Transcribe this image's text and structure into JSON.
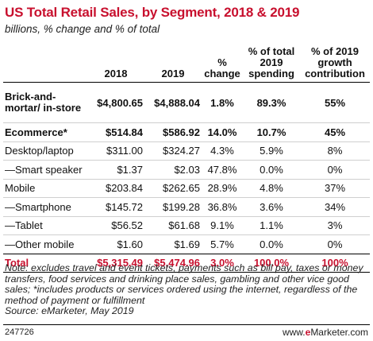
{
  "title": "US Total Retail Sales, by Segment, 2018 & 2019",
  "subtitle": "billions, % change and % of total",
  "columns": {
    "segment": "",
    "y2018": "2018",
    "y2019": "2019",
    "pct_change": [
      "%",
      "change"
    ],
    "pct_total": [
      "% of total",
      "2019",
      "spending"
    ],
    "pct_growth": [
      "% of 2019",
      "growth",
      "contribution"
    ]
  },
  "rows": [
    {
      "segment": "Brick-and-mortar/ in-store",
      "y2018": "$4,800.65",
      "y2019": "$4,888.04",
      "pct_change": "1.8%",
      "pct_total": "89.3%",
      "pct_growth": "55%"
    },
    {
      "segment": "Ecommerce*",
      "y2018": "$514.84",
      "y2019": "$586.92",
      "pct_change": "14.0%",
      "pct_total": "10.7%",
      "pct_growth": "45%"
    },
    {
      "segment": "Desktop/laptop",
      "y2018": "$311.00",
      "y2019": "$324.27",
      "pct_change": "4.3%",
      "pct_total": "5.9%",
      "pct_growth": "8%"
    },
    {
      "segment": "—Smart speaker",
      "y2018": "$1.37",
      "y2019": "$2.03",
      "pct_change": "47.8%",
      "pct_total": "0.0%",
      "pct_growth": "0%"
    },
    {
      "segment": "Mobile",
      "y2018": "$203.84",
      "y2019": "$262.65",
      "pct_change": "28.9%",
      "pct_total": "4.8%",
      "pct_growth": "37%"
    },
    {
      "segment": "—Smartphone",
      "y2018": "$145.72",
      "y2019": "$199.28",
      "pct_change": "36.8%",
      "pct_total": "3.6%",
      "pct_growth": "34%"
    },
    {
      "segment": "—Tablet",
      "y2018": "$56.52",
      "y2019": "$61.68",
      "pct_change": "9.1%",
      "pct_total": "1.1%",
      "pct_growth": "3%"
    },
    {
      "segment": "—Other mobile",
      "y2018": "$1.60",
      "y2019": "$1.69",
      "pct_change": "5.7%",
      "pct_total": "0.0%",
      "pct_growth": "0%"
    },
    {
      "segment": "Total",
      "y2018": "$5,315.49",
      "y2019": "$5,474.96",
      "pct_change": "3.0%",
      "pct_total": "100.0%",
      "pct_growth": "100%"
    }
  ],
  "note": "Note: excludes travel and event tickets, payments such as bill pay, taxes or money transfers, food services and drinking place sales, gambling and other vice good sales; *includes products or services ordered using the internet, regardless of the method of payment or fulfillment",
  "source": "Source: eMarketer, May 2019",
  "footer": {
    "id": "247726",
    "brand_prefix": "www.",
    "brand_accent": "e",
    "brand_suffix": "Marketer.com"
  },
  "colors": {
    "accent": "#c8102e",
    "text": "#111111",
    "rule": "#cfcfcf"
  }
}
